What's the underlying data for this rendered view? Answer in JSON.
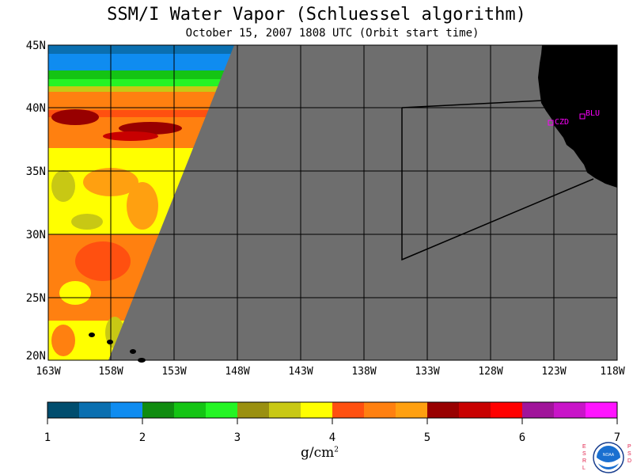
{
  "title": "SSM/I Water Vapor (Schluessel algorithm)",
  "subtitle": "October 15, 2007  1808 UTC  (Orbit start time)",
  "latitude_labels": [
    "45N",
    "40N",
    "35N",
    "30N",
    "25N",
    "20N"
  ],
  "longitude_labels": [
    "163W",
    "158W",
    "153W",
    "148W",
    "143W",
    "138W",
    "133W",
    "128W",
    "123W",
    "118W"
  ],
  "station_labels": [
    "CZD",
    "BLU"
  ],
  "colorbar": {
    "tick_labels": [
      "1",
      "2",
      "3",
      "4",
      "5",
      "6",
      "7"
    ],
    "units_text": "g/cm",
    "units_exponent": "2",
    "colors": [
      "#004d6e",
      "#0a6fb0",
      "#0f8cf0",
      "#108c10",
      "#14c414",
      "#24f424",
      "#9a9010",
      "#c8c814",
      "#ffff00",
      "#ff5010",
      "#ff8010",
      "#ffa010",
      "#980000",
      "#c80000",
      "#ff0000",
      "#a0149a",
      "#c814c8",
      "#ff14ff"
    ]
  },
  "colors": {
    "no_data": "#6e6e6e",
    "land": "#000000",
    "grid": "#000000",
    "station": "#ff00ff"
  },
  "logo": {
    "left_text": "ESRL",
    "right_text": "PSD",
    "center_text": "NOAA"
  },
  "chart_data": {
    "type": "heatmap",
    "title": "SSM/I Water Vapor (Schluessel algorithm)",
    "subtitle": "October 15, 2007  1808 UTC  (Orbit start time)",
    "lon_range": [
      -163,
      -118
    ],
    "lat_range": [
      20,
      45
    ],
    "value_range": [
      1,
      7
    ],
    "units": "g/cm2",
    "grid": true,
    "stations": [
      {
        "name": "CZD",
        "lon": -123.0,
        "lat": 38.6
      },
      {
        "name": "BLU",
        "lon": -120.8,
        "lat": 39.3
      }
    ],
    "water_vapor_bands_by_lat": [
      {
        "lat": 44,
        "value": 1.7
      },
      {
        "lat": 41.5,
        "value": 2.7
      },
      {
        "lat": 40.5,
        "value": 3.8
      },
      {
        "lat": 39,
        "value": 4.9
      },
      {
        "lat": 37.5,
        "value": 5.1
      },
      {
        "lat": 35,
        "value": 4.0
      },
      {
        "lat": 30,
        "value": 4.3
      },
      {
        "lat": 25,
        "value": 4.5
      },
      {
        "lat": 21,
        "value": 4.0
      }
    ]
  }
}
